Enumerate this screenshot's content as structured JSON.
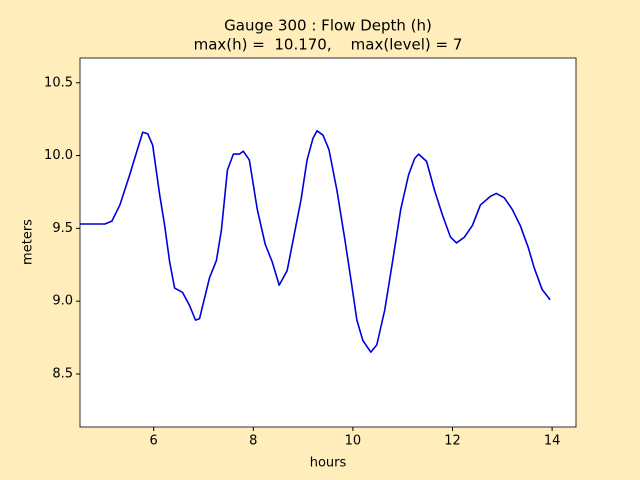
{
  "chart_data": {
    "type": "line",
    "title": [
      "Gauge 300 : Flow Depth (h)",
      "max(h) =  10.170,    max(level) = 7"
    ],
    "xlabel": "hours",
    "ylabel": "meters",
    "xlim": [
      4.52,
      14.48
    ],
    "ylim": [
      8.136,
      10.67
    ],
    "xticks": [
      6,
      8,
      10,
      12,
      14
    ],
    "yticks": [
      8.5,
      {
        "value": 9,
        "label": "9.0"
      },
      9.5,
      {
        "value": 10,
        "label": "10.0"
      },
      10.5
    ],
    "x": [
      4.52,
      5.02,
      5.16,
      5.32,
      5.52,
      5.68,
      5.78,
      5.88,
      5.98,
      6.12,
      6.22,
      6.32,
      6.42,
      6.58,
      6.72,
      6.84,
      6.92,
      7.12,
      7.26,
      7.36,
      7.48,
      7.6,
      7.72,
      7.8,
      7.92,
      8.08,
      8.24,
      8.38,
      8.52,
      8.68,
      8.84,
      8.96,
      9.08,
      9.2,
      9.28,
      9.4,
      9.52,
      9.68,
      9.84,
      9.96,
      10.08,
      10.2,
      10.36,
      10.48,
      10.64,
      10.8,
      10.96,
      11.12,
      11.24,
      11.32,
      11.48,
      11.64,
      11.8,
      11.96,
      12.08,
      12.24,
      12.4,
      12.56,
      12.76,
      12.88,
      13.04,
      13.2,
      13.36,
      13.52,
      13.64,
      13.8,
      13.96
    ],
    "series": [
      {
        "color": "#0000dd",
        "values": [
          9.53,
          9.53,
          9.55,
          9.66,
          9.87,
          10.05,
          10.16,
          10.15,
          10.07,
          9.73,
          9.52,
          9.27,
          9.09,
          9.06,
          8.97,
          8.87,
          8.88,
          9.16,
          9.28,
          9.49,
          9.9,
          10.01,
          10.01,
          10.03,
          9.97,
          9.63,
          9.39,
          9.27,
          9.11,
          9.21,
          9.49,
          9.7,
          9.97,
          10.12,
          10.17,
          10.14,
          10.04,
          9.76,
          9.42,
          9.15,
          8.87,
          8.73,
          8.65,
          8.7,
          8.94,
          9.28,
          9.63,
          9.87,
          9.98,
          10.01,
          9.96,
          9.76,
          9.59,
          9.44,
          9.4,
          9.44,
          9.52,
          9.66,
          9.72,
          9.74,
          9.71,
          9.63,
          9.52,
          9.37,
          9.23,
          9.08,
          9.01
        ]
      }
    ],
    "background": "#ffeebb"
  }
}
